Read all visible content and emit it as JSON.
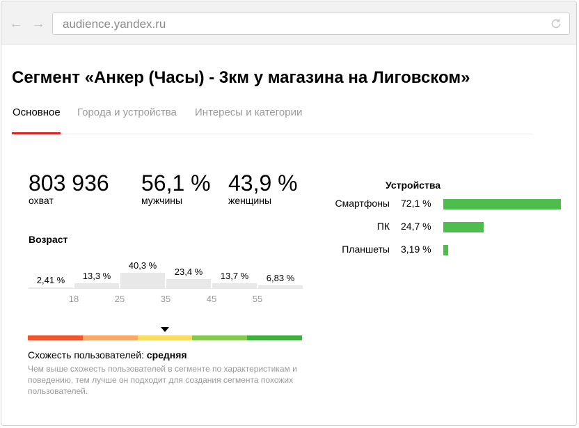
{
  "browser": {
    "url": "audience.yandex.ru",
    "back_icon": "arrow-left-icon",
    "forward_icon": "arrow-right-icon",
    "reload_icon": "reload-icon"
  },
  "page": {
    "title": "Сегмент «Анкер (Часы) - 3км у магазина на Лиговском»"
  },
  "tabs": [
    {
      "label": "Основное",
      "active": true
    },
    {
      "label": "Города и устройства",
      "active": false
    },
    {
      "label": "Интересы и категории",
      "active": false
    }
  ],
  "stats": [
    {
      "value": "803 936",
      "label": "охват"
    },
    {
      "value": "56,1 %",
      "label": "мужчины"
    },
    {
      "value": "43,9 %",
      "label": "женщины"
    }
  ],
  "age": {
    "heading": "Возраст",
    "groups": [
      {
        "label": "2,41 %",
        "percent": 2.41
      },
      {
        "label": "13,3 %",
        "percent": 13.3
      },
      {
        "label": "40,3 %",
        "percent": 40.3
      },
      {
        "label": "23,4 %",
        "percent": 23.4
      },
      {
        "label": "13,7 %",
        "percent": 13.7
      },
      {
        "label": "6,83 %",
        "percent": 6.83
      }
    ],
    "ticks": [
      "18",
      "25",
      "35",
      "45",
      "55"
    ]
  },
  "similarity": {
    "label": "Схожесть пользователей:",
    "value": "средняя",
    "level": 0.5,
    "colors": [
      "#f0542c",
      "#f7a965",
      "#fadd5e",
      "#85c94f",
      "#3fb03f"
    ],
    "description": "Чем выше схожесть пользователей в сегменте по характеристикам и поведению, тем лучше он подходит для создания сегмента похожих пользователей."
  },
  "devices": {
    "heading": "Устройства",
    "bar_color": "#4dbd4d",
    "items": [
      {
        "name": "Смартфоны",
        "value": "72,1 %",
        "percent": 72.1
      },
      {
        "name": "ПК",
        "value": "24,7 %",
        "percent": 24.7
      },
      {
        "name": "Планшеты",
        "value": "3,19 %",
        "percent": 3.19
      }
    ]
  }
}
